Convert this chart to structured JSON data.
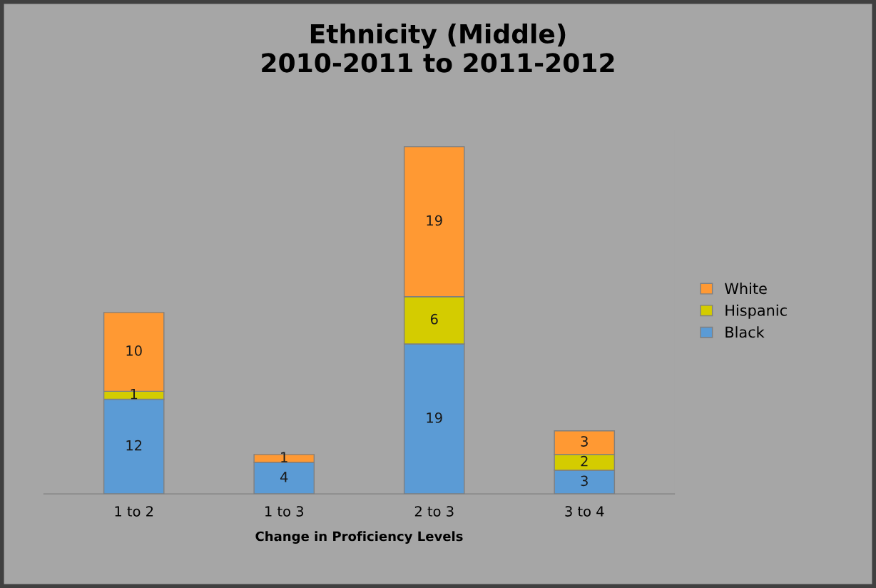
{
  "chart_data": {
    "type": "bar",
    "stacked": true,
    "title": "Ethnicity (Middle)\n2010-2011 to 2011-2012",
    "xlabel": "Change in Proficiency Levels",
    "categories": [
      "1 to 2",
      "1 to 3",
      "2 to 3",
      "3 to 4"
    ],
    "series": [
      {
        "name": "Black",
        "color": "#5b9bd5",
        "values": [
          12,
          4,
          19,
          3
        ]
      },
      {
        "name": "Hispanic",
        "color": "#d4cc00",
        "values": [
          1,
          null,
          6,
          2
        ]
      },
      {
        "name": "White",
        "color": "#ff9933",
        "values": [
          10,
          1,
          19,
          3
        ]
      }
    ],
    "data_labels": true,
    "legend": "right",
    "grid": false
  }
}
